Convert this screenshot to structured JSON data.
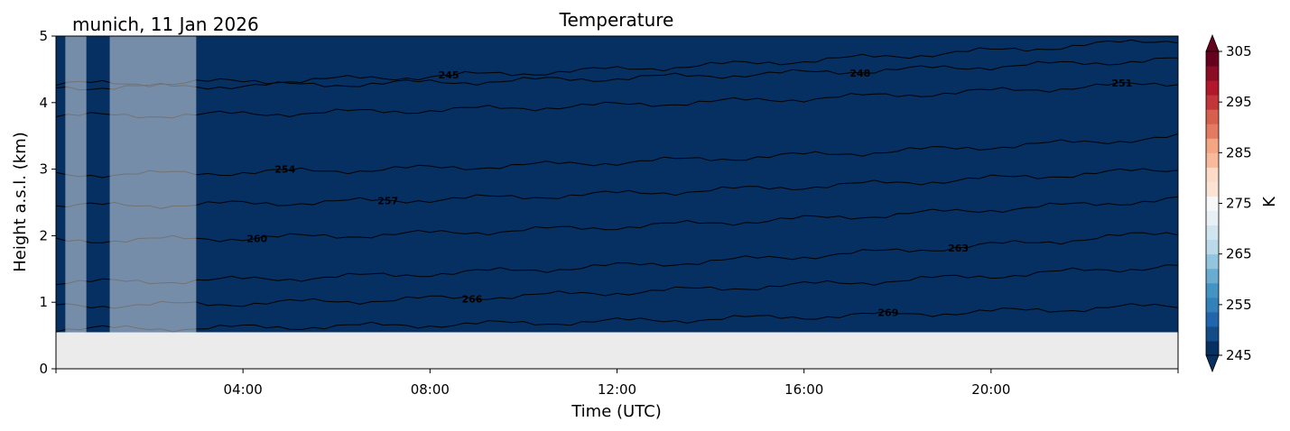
{
  "chart_data": {
    "type": "heatmap",
    "title": "Temperature",
    "subtitle": "munich, 11 Jan 2026",
    "xlabel": "Time (UTC)",
    "ylabel": "Height a.s.l. (km)",
    "xlim": [
      0,
      24
    ],
    "ylim": [
      0,
      5
    ],
    "x_ticks": [
      {
        "value": 4,
        "label": "04:00"
      },
      {
        "value": 8,
        "label": "08:00"
      },
      {
        "value": 12,
        "label": "12:00"
      },
      {
        "value": 16,
        "label": "16:00"
      },
      {
        "value": 20,
        "label": "20:00"
      }
    ],
    "y_ticks": [
      {
        "value": 0,
        "label": "0"
      },
      {
        "value": 1,
        "label": "1"
      },
      {
        "value": 2,
        "label": "2"
      },
      {
        "value": 3,
        "label": "3"
      },
      {
        "value": 4,
        "label": "4"
      },
      {
        "value": 5,
        "label": "5"
      }
    ],
    "data_bottom_km": 0.55,
    "masked_time_ranges": [
      [
        0.2,
        0.65
      ],
      [
        1.15,
        3.0
      ]
    ],
    "contours": [
      {
        "level": 245,
        "label": "245",
        "h0": 4.28,
        "h1": 4.95,
        "label_x": 8.4
      },
      {
        "level": 248,
        "label": "248",
        "h0": 4.23,
        "h1": 4.65,
        "label_x": 17.2
      },
      {
        "level": 251,
        "label": "251",
        "h0": 3.8,
        "h1": 4.3,
        "label_x": 22.8
      },
      {
        "level": 254,
        "label": "254",
        "h0": 2.92,
        "h1": 3.48,
        "label_x": 4.9
      },
      {
        "level": 257,
        "label": "257",
        "h0": 2.45,
        "h1": 3.0,
        "label_x": 7.1
      },
      {
        "level": 260,
        "label": "260",
        "h0": 1.93,
        "h1": 2.55,
        "label_x": 4.3
      },
      {
        "level": 263,
        "label": "263",
        "h0": 1.3,
        "h1": 2.05,
        "label_x": 19.3
      },
      {
        "level": 266,
        "label": "266",
        "h0": 0.95,
        "h1": 1.55,
        "label_x": 8.9
      },
      {
        "level": 269,
        "label": "269",
        "h0": 0.6,
        "h1": 0.95,
        "label_x": 17.8
      }
    ],
    "colorbar": {
      "label": "K",
      "vmin": 245,
      "vmax": 305,
      "ticks": [
        245,
        255,
        265,
        275,
        285,
        295,
        305
      ],
      "tick_labels": [
        "245",
        "255",
        "265",
        "275",
        "285",
        "295",
        "305"
      ],
      "colors": [
        "#053061",
        "#144c87",
        "#2166ac",
        "#3480b9",
        "#4393c3",
        "#6aacd0",
        "#92c5de",
        "#bad9e9",
        "#d1e5f0",
        "#e8f0f4",
        "#f7f7f7",
        "#fbe3d4",
        "#fddbc7",
        "#f8b99c",
        "#f4a582",
        "#e27b62",
        "#d6604d",
        "#c13639",
        "#b2182b",
        "#8b0d25",
        "#67001f"
      ],
      "extend": "both"
    },
    "colors": {
      "missing_bg": "#ebebeb",
      "contour": "#000000",
      "mask_overlay": "#ffffff"
    }
  }
}
